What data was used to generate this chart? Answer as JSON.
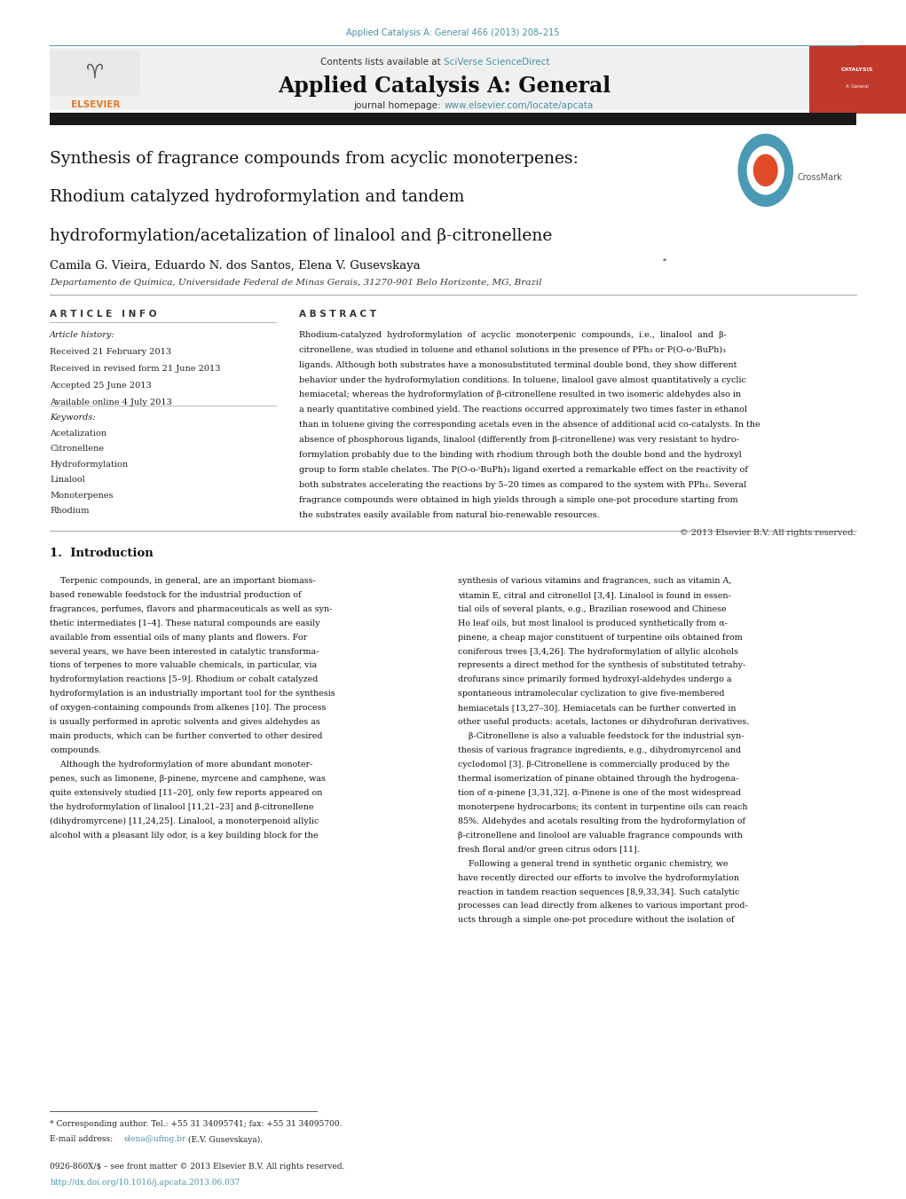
{
  "page_width": 10.21,
  "page_height": 13.51,
  "bg_color": "#ffffff",
  "journal_ref": "Applied Catalysis A: General 466 (2013) 208–215",
  "journal_ref_color": "#4a90a4",
  "header_bg": "#f0f0f0",
  "header_text": "Contents lists available at",
  "sciverse_text": "SciVerse ScienceDirect",
  "sciverse_color": "#4a90a4",
  "journal_title": "Applied Catalysis A: General",
  "journal_homepage_text": "journal homepage:",
  "journal_url": "www.elsevier.com/locate/apcata",
  "journal_url_color": "#4a90a4",
  "black_bar_color": "#1a1a1a",
  "paper_title_line1": "Synthesis of fragrance compounds from acyclic monoterpenes:",
  "paper_title_line2": "Rhodium catalyzed hydroformylation and tandem",
  "paper_title_line3": "hydroformylation/acetalization of linalool and β-citronellene",
  "authors": "Camila G. Vieira, Eduardo N. dos Santos, Elena V. Gusevskaya",
  "author_star": "*",
  "affiliation": "Departamento de Química, Universidade Federal de Minas Gerais, 31270-901 Belo Horizonte, MG, Brazil",
  "section_article_info": "A R T I C L E   I N F O",
  "section_abstract": "A B S T R A C T",
  "article_history_label": "Article history:",
  "received1": "Received 21 February 2013",
  "received2": "Received in revised form 21 June 2013",
  "accepted": "Accepted 25 June 2013",
  "available": "Available online 4 July 2013",
  "keywords_label": "Keywords:",
  "keywords": [
    "Acetalization",
    "Citronellene",
    "Hydroformylation",
    "Linalool",
    "Monoterpenes",
    "Rhodium"
  ],
  "abstract_text": "Rhodium-catalyzed  hydroformylation  of  acyclic  monoterpenic  compounds,  i.e.,  linalool  and  β-citronellene, was studied in toluene and ethanol solutions in the presence of PPh₃ or P(O-o-ᵗBuPh)₃ ligands. Although both substrates have a monosubstituted terminal double bond, they show different behavior under the hydroformylation conditions. In toluene, linalool gave almost quantitatively a cyclic hemiacetal; whereas the hydroformylation of β-citronellene resulted in two isomeric aldehydes also in a nearly quantitative combined yield. The reactions occurred approximately two times faster in ethanol than in toluene giving the corresponding acetals even in the absence of additional acid co-catalysts. In the absence of phosphorous ligands, linalool (differently from β-citronellene) was very resistant to hydroformylation probably due to the binding with rhodium through both the double bond and the hydroxyl group to form stable chelates. The P(O-o-ᵗBuPh)₃ ligand exerted a remarkable effect on the reactivity of both substrates accelerating the reactions by 5–20 times as compared to the system with PPh₃. Several fragrance compounds were obtained in high yields through a simple one-pot procedure starting from the substrates easily available from natural bio-renewable resources.",
  "copyright": "© 2013 Elsevier B.V. All rights reserved.",
  "intro_heading": "1.  Introduction",
  "intro_col1_lines": [
    "    Terpenic compounds, in general, are an important biomass-",
    "based renewable feedstock for the industrial production of",
    "fragrances, perfumes, flavors and pharmaceuticals as well as syn-",
    "thetic intermediates [1–4]. These natural compounds are easily",
    "available from essential oils of many plants and flowers. For",
    "several years, we have been interested in catalytic transforma-",
    "tions of terpenes to more valuable chemicals, in particular, via",
    "hydroformylation reactions [5–9]. Rhodium or cobalt catalyzed",
    "hydroformylation is an industrially important tool for the synthesis",
    "of oxygen-containing compounds from alkenes [10]. The process",
    "is usually performed in aprotic solvents and gives aldehydes as",
    "main products, which can be further converted to other desired",
    "compounds.",
    "    Although the hydroformylation of more abundant monoter-",
    "penes, such as limonene, β-pinene, myrcene and camphene, was",
    "quite extensively studied [11–20], only few reports appeared on",
    "the hydroformylation of linalool [11,21–23] and β-citronellene",
    "(dihydromyrcene) [11,24,25]. Linalool, a monoterpenoid allylic",
    "alcohol with a pleasant lily odor, is a key building block for the"
  ],
  "intro_col2_lines": [
    "synthesis of various vitamins and fragrances, such as vitamin A,",
    "vitamin E, citral and citronellol [3,4]. Linalool is found in essen-",
    "tial oils of several plants, e.g., Brazilian rosewood and Chinese",
    "Ho leaf oils, but most linalool is produced synthetically from α-",
    "pinene, a cheap major constituent of turpentine oils obtained from",
    "coniferous trees [3,4,26]. The hydroformylation of allylic alcohols",
    "represents a direct method for the synthesis of substituted tetrahy-",
    "drofurans since primarily formed hydroxyl-aldehydes undergo a",
    "spontaneous intramolecular cyclization to give five-membered",
    "hemiacetals [13,27–30]. Hemiacetals can be further converted in",
    "other useful products: acetals, lactones or dihydrofuran derivatives.",
    "    β-Citronellene is also a valuable feedstock for the industrial syn-",
    "thesis of various fragrance ingredients, e.g., dihydromyrcenol and",
    "cyclodomol [3]. β-Citronellene is commercially produced by the",
    "thermal isomerization of pinane obtained through the hydrogena-",
    "tion of α-pinene [3,31,32]. α-Pinene is one of the most widespread",
    "monoterpene hydrocarbons; its content in turpentine oils can reach",
    "85%. Aldehydes and acetals resulting from the hydroformylation of",
    "β-citronellene and linolool are valuable fragrance compounds with",
    "fresh floral and/or green citrus odors [11].",
    "    Following a general trend in synthetic organic chemistry, we",
    "have recently directed our efforts to involve the hydroformylation",
    "reaction in tandem reaction sequences [8,9,33,34]. Such catalytic",
    "processes can lead directly from alkenes to various important prod-",
    "ucts through a simple one-pot procedure without the isolation of"
  ],
  "footer_issn": "0926-860X/$ – see front matter © 2013 Elsevier B.V. All rights reserved.",
  "footer_doi": "http://dx.doi.org/10.1016/j.apcata.2013.06.037",
  "footer_doi_color": "#4a90a4",
  "footnote_star": "* Corresponding author. Tel.: +55 31 34095741; fax: +55 31 34095700.",
  "footnote_email_label": "E-mail address:",
  "footnote_email": "elena@ufmg.br",
  "footnote_email_color": "#4a90a4",
  "footnote_email_suffix": " (E.V. Gusevskaya)."
}
